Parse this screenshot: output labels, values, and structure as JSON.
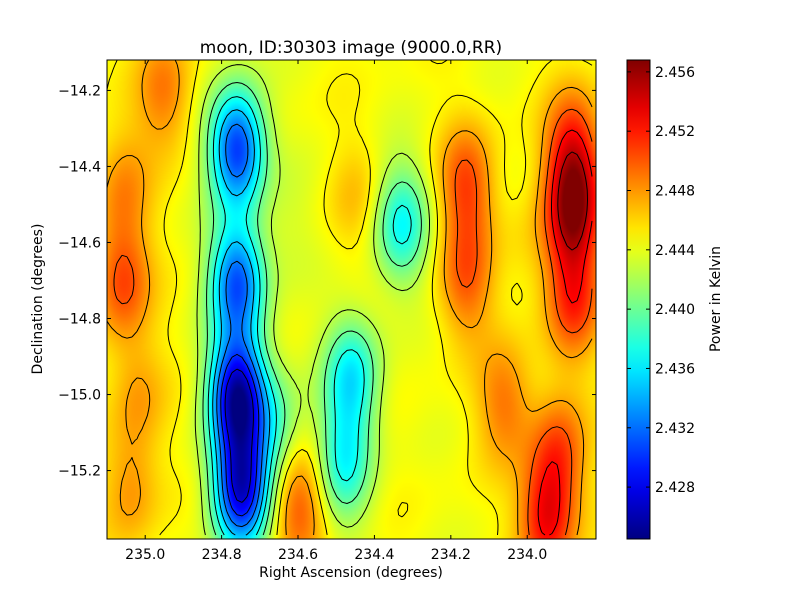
{
  "chart_data": {
    "type": "heatmap",
    "title": "moon, ID:30303 image (9000.0,RR)",
    "xlabel": "Right Ascension (degrees)",
    "ylabel": "Declination (degrees)",
    "colorbar_label": "Power in Kelvin",
    "colormap": "jet",
    "x_range": [
      235.1,
      233.82
    ],
    "y_range": [
      -15.38,
      -14.12
    ],
    "x_ticks": [
      235.0,
      234.8,
      234.6,
      234.4,
      234.2,
      234.0
    ],
    "x_tick_labels": [
      "235.0",
      "234.8",
      "234.6",
      "234.4",
      "234.2",
      "234.0"
    ],
    "y_ticks": [
      -14.2,
      -14.4,
      -14.6,
      -14.8,
      -15.0,
      -15.2
    ],
    "y_tick_labels": [
      "−14.2",
      "−14.4",
      "−14.6",
      "−14.8",
      "−15.0",
      "−15.2"
    ],
    "color_range": [
      2.4245,
      2.4568
    ],
    "colorbar_ticks": [
      2.428,
      2.432,
      2.436,
      2.44,
      2.444,
      2.448,
      2.452,
      2.456
    ],
    "colorbar_tick_labels": [
      "2.428",
      "2.432",
      "2.436",
      "2.440",
      "2.444",
      "2.448",
      "2.452",
      "2.456"
    ],
    "contours": true,
    "features": [
      {
        "ra": 234.76,
        "dec": -14.35,
        "value": 2.43
      },
      {
        "ra": 234.76,
        "dec": -14.7,
        "value": 2.4315
      },
      {
        "ra": 234.76,
        "dec": -15.0,
        "value": 2.4265
      },
      {
        "ra": 234.75,
        "dec": -15.25,
        "value": 2.428
      },
      {
        "ra": 234.46,
        "dec": -14.95,
        "value": 2.4365
      },
      {
        "ra": 234.33,
        "dec": -14.55,
        "value": 2.437
      },
      {
        "ra": 234.48,
        "dec": -15.18,
        "value": 2.4375
      },
      {
        "ra": 233.88,
        "dec": -14.52,
        "value": 2.4545
      },
      {
        "ra": 233.88,
        "dec": -14.35,
        "value": 2.4515
      },
      {
        "ra": 233.88,
        "dec": -14.75,
        "value": 2.451
      },
      {
        "ra": 234.16,
        "dec": -14.45,
        "value": 2.4505
      },
      {
        "ra": 234.16,
        "dec": -14.7,
        "value": 2.4495
      },
      {
        "ra": 234.6,
        "dec": -15.28,
        "value": 2.4505
      },
      {
        "ra": 233.95,
        "dec": -15.33,
        "value": 2.4525
      },
      {
        "ra": 233.92,
        "dec": -15.15,
        "value": 2.45
      },
      {
        "ra": 234.06,
        "dec": -15.02,
        "value": 2.449
      },
      {
        "ra": 235.06,
        "dec": -14.7,
        "value": 2.4505
      },
      {
        "ra": 234.95,
        "dec": -14.2,
        "value": 2.449
      },
      {
        "ra": 235.06,
        "dec": -14.45,
        "value": 2.448
      },
      {
        "ra": 235.02,
        "dec": -15.0,
        "value": 2.4475
      },
      {
        "ra": 235.04,
        "dec": -15.25,
        "value": 2.448
      },
      {
        "ra": 234.66,
        "dec": -15.1,
        "value": 2.4395
      },
      {
        "ra": 234.62,
        "dec": -14.55,
        "value": 2.4435
      },
      {
        "ra": 234.45,
        "dec": -14.48,
        "value": 2.4465
      },
      {
        "ra": 234.0,
        "dec": -14.62,
        "value": 2.4455
      }
    ]
  }
}
